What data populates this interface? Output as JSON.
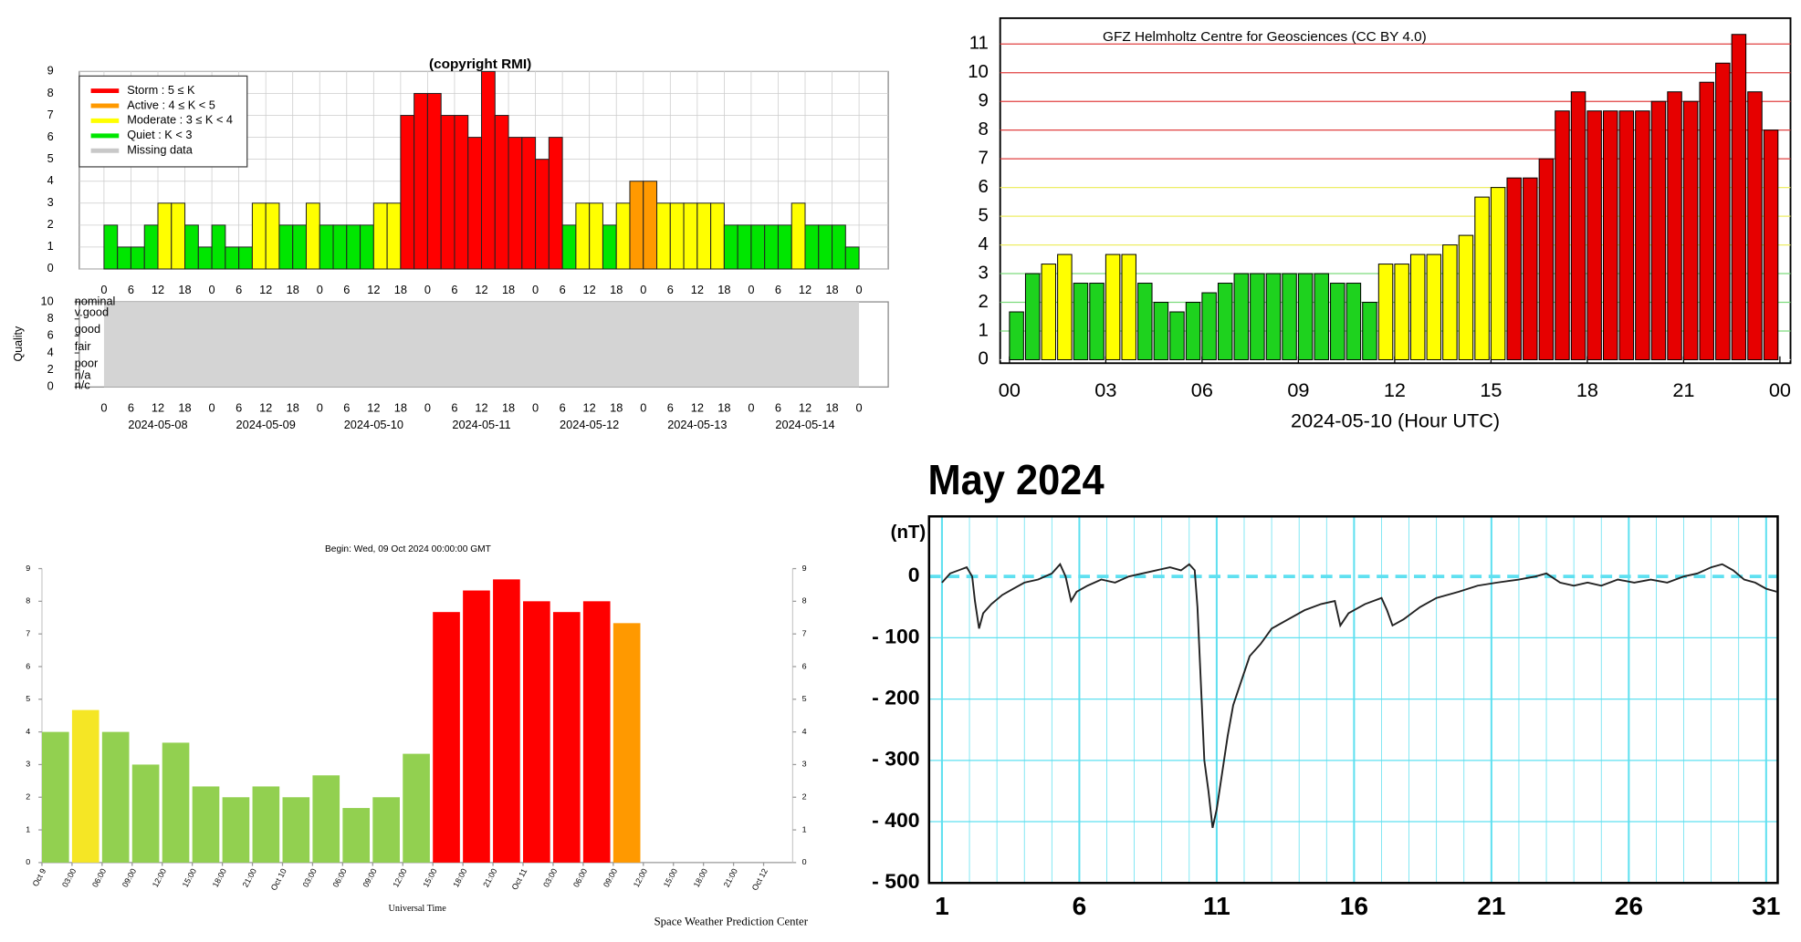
{
  "chart_data": [
    {
      "type": "bar",
      "title": "(copyright RMI)",
      "legend": [
        {
          "name": "Storm : 5 ≤ K",
          "color": "#ff0000"
        },
        {
          "name": "Active : 4 ≤ K < 5",
          "color": "#ff9900"
        },
        {
          "name": "Moderate : 3 ≤ K < 4",
          "color": "#ffff00"
        },
        {
          "name": "Quiet : K < 3",
          "color": "#00e600"
        },
        {
          "name": "Missing data",
          "color": "#c8c8c8"
        }
      ],
      "x": [
        0,
        3,
        6,
        9,
        12,
        15,
        18,
        21,
        24,
        27,
        30,
        33,
        36,
        39,
        42,
        45,
        48,
        51,
        54,
        57,
        60,
        63,
        66,
        69,
        72,
        75,
        78,
        81,
        84,
        87,
        90,
        93,
        96,
        99,
        102,
        105,
        108,
        111,
        114,
        117,
        120,
        123,
        126,
        129,
        132,
        135,
        138,
        141,
        144,
        147,
        150,
        153,
        156,
        159,
        162,
        165
      ],
      "values": [
        2,
        1,
        1,
        2,
        3,
        3,
        2,
        1,
        2,
        1,
        1,
        3,
        3,
        2,
        2,
        3,
        2,
        2,
        2,
        2,
        3,
        3,
        7,
        8,
        8,
        7,
        7,
        6,
        9,
        7,
        6,
        6,
        5,
        6,
        2,
        3,
        3,
        2,
        3,
        4,
        4,
        3,
        3,
        3,
        3,
        3,
        2,
        2,
        2,
        2,
        2,
        3,
        2,
        2,
        2,
        1
      ],
      "colors": [
        "#00e600",
        "#00e600",
        "#00e600",
        "#00e600",
        "#ffff00",
        "#ffff00",
        "#00e600",
        "#00e600",
        "#00e600",
        "#00e600",
        "#00e600",
        "#ffff00",
        "#ffff00",
        "#00e600",
        "#00e600",
        "#ffff00",
        "#00e600",
        "#00e600",
        "#00e600",
        "#00e600",
        "#ffff00",
        "#ffff00",
        "#ff0000",
        "#ff0000",
        "#ff0000",
        "#ff0000",
        "#ff0000",
        "#ff0000",
        "#ff0000",
        "#ff0000",
        "#ff0000",
        "#ff0000",
        "#ff0000",
        "#ff0000",
        "#00e600",
        "#ffff00",
        "#ffff00",
        "#00e600",
        "#ffff00",
        "#ff9900",
        "#ff9900",
        "#ffff00",
        "#ffff00",
        "#ffff00",
        "#ffff00",
        "#ffff00",
        "#00e600",
        "#00e600",
        "#00e600",
        "#00e600",
        "#00e600",
        "#ffff00",
        "#00e600",
        "#00e600",
        "#00e600",
        "#00e600"
      ],
      "xlim": [
        -5.5,
        174.5
      ],
      "xticks": [
        0,
        6,
        12,
        18,
        {
          "value": 24,
          "label": "0"
        },
        {
          "value": 30,
          "label": "6"
        },
        {
          "value": 36,
          "label": "12"
        },
        {
          "value": 42,
          "label": "18"
        },
        {
          "value": 48,
          "label": "0"
        },
        {
          "value": 54,
          "label": "6"
        },
        {
          "value": 60,
          "label": "12"
        },
        {
          "value": 66,
          "label": "18"
        },
        {
          "value": 72,
          "label": "0"
        },
        {
          "value": 78,
          "label": "6"
        },
        {
          "value": 84,
          "label": "12"
        },
        {
          "value": 90,
          "label": "18"
        },
        {
          "value": 96,
          "label": "0"
        },
        {
          "value": 102,
          "label": "6"
        },
        {
          "value": 108,
          "label": "12"
        },
        {
          "value": 114,
          "label": "18"
        },
        {
          "value": 120,
          "label": "0"
        },
        {
          "value": 126,
          "label": "6"
        },
        {
          "value": 132,
          "label": "12"
        },
        {
          "value": 138,
          "label": "18"
        },
        {
          "value": 144,
          "label": "0"
        },
        {
          "value": 150,
          "label": "6"
        },
        {
          "value": 156,
          "label": "12"
        },
        {
          "value": 162,
          "label": "18"
        },
        {
          "value": 168,
          "label": "0"
        }
      ],
      "dates": [
        {
          "value": 12,
          "label": "2024-05-08"
        },
        {
          "value": 36,
          "label": "2024-05-09"
        },
        {
          "value": 60,
          "label": "2024-05-10"
        },
        {
          "value": 84,
          "label": "2024-05-11"
        },
        {
          "value": 108,
          "label": "2024-05-12"
        },
        {
          "value": 132,
          "label": "2024-05-13"
        },
        {
          "value": 156,
          "label": "2024-05-14"
        }
      ],
      "ylim": [
        0,
        9
      ],
      "yticks": [
        0,
        1,
        2,
        3,
        4,
        5,
        6,
        7,
        8,
        9
      ],
      "grid": true,
      "quality_ylabel": "Quality",
      "quality_ylim": [
        0,
        10
      ],
      "quality_yticks": [
        0,
        2,
        4,
        6,
        8,
        10
      ],
      "quality_labels": [
        {
          "value": 10,
          "label": "nominal"
        },
        {
          "value": 8.7,
          "label": "v.good"
        },
        {
          "value": 6.7,
          "label": "good"
        },
        {
          "value": 4.7,
          "label": "fair"
        },
        {
          "value": 2.7,
          "label": "poor"
        },
        {
          "value": 1.3,
          "label": "n/a"
        },
        {
          "value": 0.1,
          "label": "n/c"
        }
      ]
    },
    {
      "type": "bar",
      "title": "GFZ Helmholtz Centre for Geosciences (CC BY 4.0)",
      "xlabel": "2024-05-10 (Hour UTC)",
      "x": [
        0,
        0.5,
        1,
        1.5,
        2,
        2.5,
        3,
        3.5,
        4,
        4.5,
        5,
        5.5,
        6,
        6.5,
        7,
        7.5,
        8,
        8.5,
        9,
        9.5,
        10,
        10.5,
        11,
        11.5,
        12,
        12.5,
        13,
        13.5,
        14,
        14.5,
        15,
        15.5,
        16,
        16.5,
        17,
        17.5,
        18,
        18.5,
        19,
        19.5,
        20,
        20.5,
        21,
        21.5,
        22,
        22.5,
        23,
        23.5
      ],
      "values": [
        1.667,
        3,
        3.333,
        3.667,
        2.667,
        2.667,
        3.667,
        3.667,
        2.667,
        2,
        1.667,
        2,
        2.333,
        2.667,
        3,
        3,
        3,
        3,
        3,
        3,
        2.667,
        2.667,
        2,
        3.333,
        3.333,
        3.667,
        3.667,
        4,
        4.333,
        5.667,
        6,
        6.333,
        6.333,
        7,
        8.667,
        9.333,
        8.667,
        8.667,
        8.667,
        8.667,
        9,
        9.333,
        9,
        9.667,
        10.333,
        11.333,
        9.333,
        8
      ],
      "colors": [
        "#1ed21e",
        "#1ed21e",
        "#ffff00",
        "#ffff00",
        "#1ed21e",
        "#1ed21e",
        "#ffff00",
        "#ffff00",
        "#1ed21e",
        "#1ed21e",
        "#1ed21e",
        "#1ed21e",
        "#1ed21e",
        "#1ed21e",
        "#1ed21e",
        "#1ed21e",
        "#1ed21e",
        "#1ed21e",
        "#1ed21e",
        "#1ed21e",
        "#1ed21e",
        "#1ed21e",
        "#1ed21e",
        "#ffff00",
        "#ffff00",
        "#ffff00",
        "#ffff00",
        "#ffff00",
        "#ffff00",
        "#ffff00",
        "#ffff00",
        "#e60000",
        "#e60000",
        "#e60000",
        "#e60000",
        "#e60000",
        "#e60000",
        "#e60000",
        "#e60000",
        "#e60000",
        "#e60000",
        "#e60000",
        "#e60000",
        "#e60000",
        "#e60000",
        "#e60000",
        "#e60000",
        "#e60000"
      ],
      "xlim": [
        -0.29,
        24.33
      ],
      "xticks": [
        {
          "value": 0,
          "label": "00"
        },
        {
          "value": 3,
          "label": "03"
        },
        {
          "value": 6,
          "label": "06"
        },
        {
          "value": 9,
          "label": "09"
        },
        12,
        15,
        18,
        21,
        {
          "value": 24,
          "label": "00"
        }
      ],
      "ylim": [
        -0.12,
        11.9
      ],
      "yticks": [
        0,
        1,
        2,
        3,
        4,
        5,
        6,
        7,
        8,
        9,
        10,
        11
      ],
      "grid_colors": [
        "#ffffff",
        "#7ddc7d",
        "#7ddc7d",
        "#7ddc7d",
        "#eeee66",
        "#eeee66",
        "#eeee66",
        "#e04040",
        "#e04040",
        "#e04040",
        "#e04040",
        "#e04040"
      ],
      "grid": true
    },
    {
      "type": "bar",
      "title": "Begin: Wed, 09 Oct 2024 00:00:00 GMT",
      "xlabel": "Universal Time",
      "footer": "Space Weather Prediction Center",
      "x": [
        0,
        3,
        6,
        9,
        12,
        15,
        18,
        21,
        24,
        27,
        30,
        33,
        36,
        39,
        42,
        45,
        48,
        51,
        54,
        57
      ],
      "values": [
        4,
        4.67,
        4,
        3,
        3.67,
        2.33,
        2,
        2.33,
        2,
        2.67,
        1.67,
        2,
        3.33,
        7.67,
        8.33,
        8.67,
        8,
        7.67,
        8,
        7.33
      ],
      "colors": [
        "#92d050",
        "#f5e625",
        "#92d050",
        "#92d050",
        "#92d050",
        "#92d050",
        "#92d050",
        "#92d050",
        "#92d050",
        "#92d050",
        "#92d050",
        "#92d050",
        "#92d050",
        "#ff0000",
        "#ff0000",
        "#ff0000",
        "#ff0000",
        "#ff0000",
        "#ff0000",
        "#ff9900"
      ],
      "xlim": [
        0,
        74.9
      ],
      "xticks": [
        {
          "value": 0,
          "label": "Oct 9"
        },
        {
          "value": 3,
          "label": "03:00"
        },
        {
          "value": 6,
          "label": "06:00"
        },
        {
          "value": 9,
          "label": "09:00"
        },
        {
          "value": 12,
          "label": "12:00"
        },
        {
          "value": 15,
          "label": "15:00"
        },
        {
          "value": 18,
          "label": "18:00"
        },
        {
          "value": 21,
          "label": "21:00"
        },
        {
          "value": 24,
          "label": "Oct 10"
        },
        {
          "value": 27,
          "label": "03:00"
        },
        {
          "value": 30,
          "label": "06:00"
        },
        {
          "value": 33,
          "label": "09:00"
        },
        {
          "value": 36,
          "label": "12:00"
        },
        {
          "value": 39,
          "label": "15:00"
        },
        {
          "value": 42,
          "label": "18:00"
        },
        {
          "value": 45,
          "label": "21:00"
        },
        {
          "value": 48,
          "label": "Oct 11"
        },
        {
          "value": 51,
          "label": "03:00"
        },
        {
          "value": 54,
          "label": "06:00"
        },
        {
          "value": 57,
          "label": "09:00"
        },
        {
          "value": 60,
          "label": "12:00"
        },
        {
          "value": 63,
          "label": "15:00"
        },
        {
          "value": 66,
          "label": "18:00"
        },
        {
          "value": 69,
          "label": "21:00"
        },
        {
          "value": 72,
          "label": "Oct 12"
        }
      ],
      "ylim": [
        0,
        9
      ],
      "yticks": [
        0,
        1,
        2,
        3,
        4,
        5,
        6,
        7,
        8,
        9
      ],
      "y2lim": [
        0,
        9
      ],
      "y2ticks": [
        0,
        1,
        2,
        3,
        4,
        5,
        6,
        7,
        8,
        9
      ],
      "grid": false
    },
    {
      "type": "line",
      "title": "May 2024",
      "ylabel": "(nT)",
      "color": "#222222",
      "x": [
        1.0,
        1.3,
        1.6,
        1.9,
        2.1,
        2.2,
        2.35,
        2.5,
        2.8,
        3.2,
        3.6,
        4.0,
        4.5,
        5.0,
        5.3,
        5.5,
        5.7,
        5.9,
        6.3,
        6.8,
        7.3,
        7.8,
        8.3,
        8.8,
        9.3,
        9.7,
        10.0,
        10.2,
        10.3,
        10.4,
        10.55,
        10.7,
        10.85,
        11.0,
        11.2,
        11.4,
        11.6,
        11.9,
        12.2,
        12.6,
        13.0,
        13.6,
        14.2,
        14.8,
        15.3,
        15.5,
        15.8,
        16.4,
        17.0,
        17.2,
        17.4,
        17.8,
        18.4,
        19.0,
        19.8,
        20.5,
        21.2,
        22.0,
        22.6,
        23.0,
        23.5,
        24.0,
        24.5,
        25.0,
        25.6,
        26.2,
        26.8,
        27.4,
        28.0,
        28.5,
        29.0,
        29.4,
        29.8,
        30.2,
        30.6,
        31.0,
        31.4
      ],
      "values": [
        -10,
        5,
        10,
        15,
        0,
        -40,
        -85,
        -60,
        -45,
        -30,
        -20,
        -10,
        -5,
        5,
        20,
        0,
        -40,
        -25,
        -15,
        -5,
        -10,
        0,
        5,
        10,
        15,
        10,
        20,
        10,
        -50,
        -150,
        -300,
        -350,
        -410,
        -380,
        -320,
        -260,
        -210,
        -170,
        -130,
        -110,
        -85,
        -70,
        -55,
        -45,
        -40,
        -80,
        -60,
        -45,
        -35,
        -55,
        -80,
        -70,
        -50,
        -35,
        -25,
        -15,
        -10,
        -5,
        0,
        5,
        -10,
        -15,
        -10,
        -15,
        -5,
        -10,
        -5,
        -10,
        0,
        5,
        15,
        20,
        10,
        -5,
        -10,
        -20,
        -25
      ],
      "xlim": [
        0.53,
        31.42
      ],
      "xticks": [
        1,
        6,
        11,
        16,
        21,
        26,
        31
      ],
      "minor_xticks": [
        2,
        3,
        4,
        5,
        7,
        8,
        9,
        10,
        12,
        13,
        14,
        15,
        17,
        18,
        19,
        20,
        22,
        23,
        24,
        25,
        27,
        28,
        29,
        30
      ],
      "ylim": [
        -500,
        98
      ],
      "yticks": [
        0,
        {
          "value": -100,
          "label": "- 100"
        },
        {
          "value": -200,
          "label": "- 200"
        },
        {
          "value": -300,
          "label": "- 300"
        },
        {
          "value": -400,
          "label": "- 400"
        },
        {
          "value": -500,
          "label": "- 500"
        }
      ],
      "grid": true,
      "grid_color": "#5fe0f0"
    }
  ]
}
